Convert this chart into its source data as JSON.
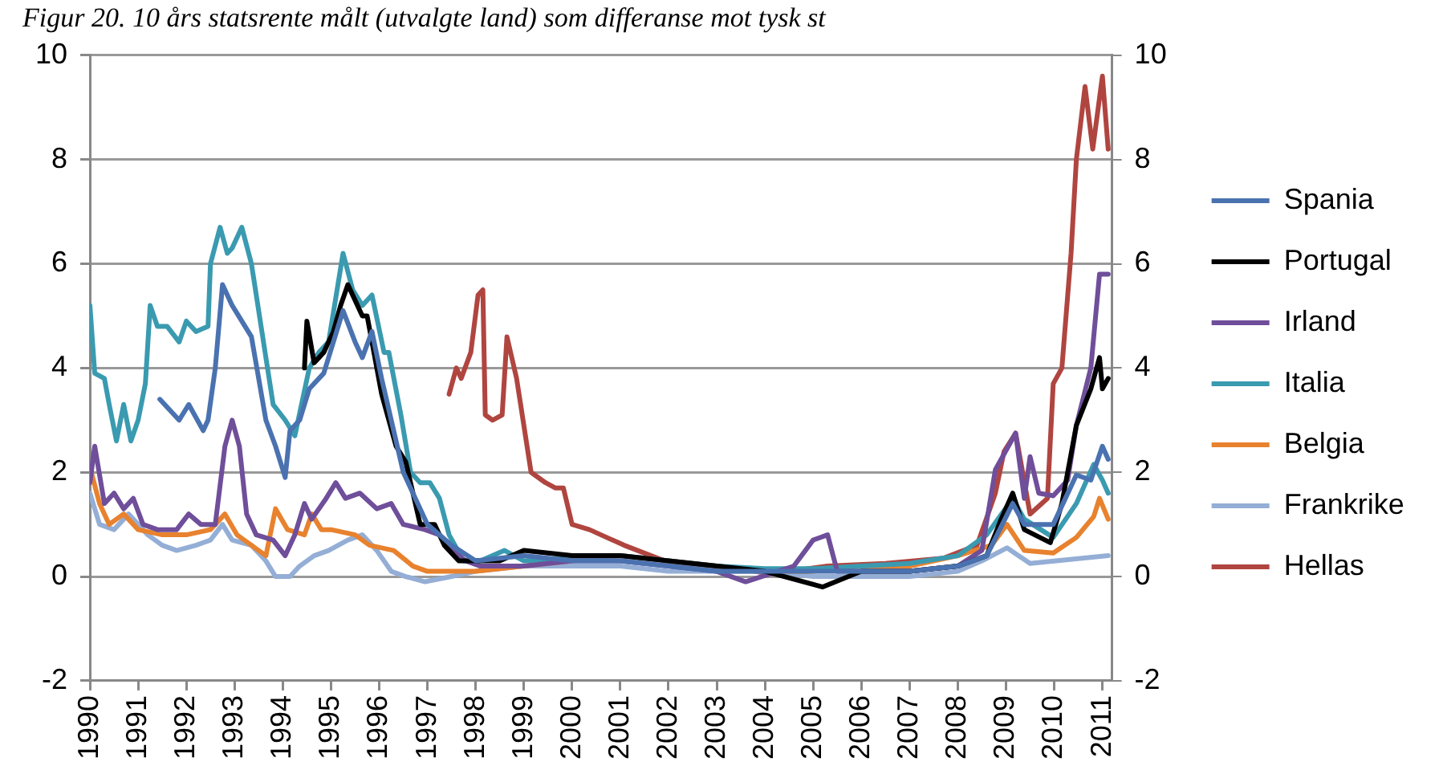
{
  "chart_data": {
    "type": "line",
    "title": "Figur 20. 10 års statsrente målt (utvalgte land) som differanse mot tysk st",
    "xlim": [
      1990,
      2011.2
    ],
    "xticks": [
      1990,
      1991,
      1992,
      1993,
      1994,
      1995,
      1996,
      1997,
      1998,
      1999,
      2000,
      2001,
      2002,
      2003,
      2004,
      2005,
      2006,
      2007,
      2008,
      2009,
      2010,
      2011
    ],
    "ylim": [
      -2,
      10
    ],
    "yticks": [
      -2,
      0,
      2,
      4,
      6,
      8,
      10
    ],
    "y2lim": [
      -2,
      10
    ],
    "y2ticks": [
      -2,
      0,
      2,
      4,
      6,
      8,
      10
    ],
    "grid": "y",
    "legend": "right",
    "marker": "none",
    "line_style": "solid",
    "series": [
      {
        "name": "Spania",
        "color": "#4a72b0",
        "x": [
          1991.45,
          1991.65,
          1991.85,
          1992.05,
          1992.35,
          1992.45,
          1992.6,
          1992.75,
          1992.95,
          1993.35,
          1993.65,
          1993.85,
          1994.05,
          1994.15,
          1994.35,
          1994.55,
          1994.85,
          1995.05,
          1995.25,
          1995.5,
          1995.65,
          1995.85,
          1996.05,
          1996.5,
          1997,
          1997.5,
          1998,
          1999,
          2000,
          2001,
          2002,
          2003,
          2004,
          2005,
          2006,
          2007,
          2008,
          2008.6,
          2009.14,
          2009.38,
          2009.98,
          2010.46,
          2010.76,
          2011,
          2011.12
        ],
        "values": [
          3.4,
          3.2,
          3.0,
          3.3,
          2.8,
          3.0,
          4.0,
          5.6,
          5.2,
          4.6,
          3.0,
          2.5,
          1.9,
          2.8,
          3.0,
          3.6,
          3.9,
          4.5,
          5.1,
          4.5,
          4.2,
          4.7,
          3.8,
          2.0,
          1.0,
          0.6,
          0.3,
          0.4,
          0.3,
          0.3,
          0.2,
          0.1,
          0.1,
          0.1,
          0.1,
          0.1,
          0.2,
          0.4,
          1.4,
          1.0,
          1.0,
          1.95,
          1.85,
          2.5,
          2.25
        ]
      },
      {
        "name": "Portugal",
        "color": "#000000",
        "x": [
          1994.45,
          1994.5,
          1994.65,
          1994.85,
          1995.05,
          1995.2,
          1995.35,
          1995.65,
          1995.75,
          1996.05,
          1996.35,
          1996.55,
          1996.85,
          1997.15,
          1997.35,
          1997.65,
          1998.5,
          1999,
          2000,
          2001,
          2002,
          2003,
          2004,
          2005.2,
          2006,
          2007,
          2008,
          2008.6,
          2008.9,
          2009.14,
          2009.38,
          2009.92,
          2010.16,
          2010.46,
          2010.76,
          2010.94,
          2011,
          2011.12
        ],
        "values": [
          4.0,
          4.9,
          4.1,
          4.3,
          4.7,
          5.2,
          5.6,
          5.0,
          5.0,
          3.5,
          2.5,
          2.2,
          1.0,
          1.0,
          0.6,
          0.3,
          0.3,
          0.5,
          0.4,
          0.4,
          0.3,
          0.2,
          0.1,
          -0.2,
          0.1,
          0.1,
          0.2,
          0.4,
          1.1,
          1.6,
          0.9,
          0.65,
          1.4,
          2.9,
          3.6,
          4.2,
          3.6,
          3.8
        ]
      },
      {
        "name": "Irland",
        "color": "#6f4e9a",
        "x": [
          1990,
          1990.1,
          1990.3,
          1990.5,
          1990.7,
          1990.9,
          1991.1,
          1991.4,
          1991.8,
          1992.05,
          1992.3,
          1992.6,
          1992.8,
          1992.95,
          1993.1,
          1993.25,
          1993.45,
          1993.8,
          1994.05,
          1994.25,
          1994.45,
          1994.6,
          1994.9,
          1995.1,
          1995.3,
          1995.6,
          1995.95,
          1996.25,
          1996.5,
          1996.95,
          1997.25,
          1997.5,
          1997.8,
          1998.1,
          1999,
          2000,
          2001,
          2002,
          2003,
          2003.6,
          2004.6,
          2005,
          2005.3,
          2005.5,
          2006,
          2007,
          2008,
          2008.5,
          2008.78,
          2009.2,
          2009.38,
          2009.5,
          2009.68,
          2009.98,
          2010.28,
          2010.46,
          2010.76,
          2010.94,
          2011.12
        ],
        "values": [
          1.8,
          2.5,
          1.4,
          1.6,
          1.3,
          1.5,
          1.0,
          0.9,
          0.9,
          1.2,
          1.0,
          1.0,
          2.5,
          3.0,
          2.5,
          1.2,
          0.8,
          0.7,
          0.4,
          0.8,
          1.4,
          1.1,
          1.5,
          1.8,
          1.5,
          1.6,
          1.3,
          1.4,
          1.0,
          0.9,
          0.8,
          0.5,
          0.3,
          0.2,
          0.2,
          0.3,
          0.3,
          0.2,
          0.1,
          -0.1,
          0.2,
          0.7,
          0.8,
          0.1,
          0.1,
          0.1,
          0.2,
          0.5,
          2.05,
          2.75,
          1.5,
          2.3,
          1.6,
          1.55,
          1.85,
          2.9,
          4.0,
          5.8,
          5.8
        ]
      },
      {
        "name": "Italia",
        "color": "#3a9ab0",
        "x": [
          1990,
          1990.1,
          1990.3,
          1990.4,
          1990.55,
          1990.7,
          1990.85,
          1991,
          1991.15,
          1991.25,
          1991.4,
          1991.6,
          1991.85,
          1992,
          1992.2,
          1992.45,
          1992.5,
          1992.7,
          1992.85,
          1992.95,
          1993.15,
          1993.35,
          1993.6,
          1993.8,
          1994.05,
          1994.25,
          1994.55,
          1994.75,
          1994.95,
          1995.25,
          1995.45,
          1995.65,
          1995.85,
          1996.1,
          1996.2,
          1996.45,
          1996.65,
          1996.85,
          1997.05,
          1997.25,
          1997.45,
          1997.75,
          1998.1,
          1998.6,
          1999,
          2000,
          2001,
          2002,
          2003,
          2004,
          2005,
          2006,
          2007,
          2008,
          2008.6,
          2009.14,
          2009.38,
          2009.98,
          2010.46,
          2010.82,
          2011,
          2011.12
        ],
        "values": [
          5.2,
          3.9,
          3.8,
          3.3,
          2.6,
          3.3,
          2.6,
          3.0,
          3.7,
          5.2,
          4.8,
          4.8,
          4.5,
          4.9,
          4.7,
          4.8,
          6.0,
          6.7,
          6.2,
          6.3,
          6.7,
          6.0,
          4.5,
          3.3,
          3.0,
          2.7,
          4.0,
          4.3,
          4.5,
          6.2,
          5.5,
          5.2,
          5.4,
          4.3,
          4.3,
          3.1,
          2.0,
          1.8,
          1.8,
          1.5,
          0.8,
          0.3,
          0.3,
          0.5,
          0.3,
          0.35,
          0.4,
          0.3,
          0.2,
          0.15,
          0.15,
          0.2,
          0.25,
          0.4,
          0.8,
          1.5,
          1.1,
          0.75,
          1.4,
          2.15,
          1.85,
          1.6
        ]
      },
      {
        "name": "Belgia",
        "color": "#e8822e",
        "x": [
          1990,
          1990.2,
          1990.4,
          1990.7,
          1991,
          1991.5,
          1992,
          1992.5,
          1992.8,
          1993.05,
          1993.35,
          1993.65,
          1993.85,
          1994.1,
          1994.45,
          1994.6,
          1994.8,
          1995,
          1995.5,
          1995.8,
          1996.3,
          1996.7,
          1997,
          1998,
          1999,
          2000,
          2001,
          2002,
          2003,
          2004,
          2005,
          2006,
          2007,
          2008,
          2008.7,
          2009.02,
          2009.38,
          2009.98,
          2010.46,
          2010.82,
          2010.94,
          2011.12
        ],
        "values": [
          2.1,
          1.4,
          1.0,
          1.2,
          0.9,
          0.8,
          0.8,
          0.9,
          1.2,
          0.8,
          0.6,
          0.4,
          1.3,
          0.9,
          0.8,
          1.2,
          0.9,
          0.9,
          0.8,
          0.6,
          0.5,
          0.2,
          0.1,
          0.1,
          0.2,
          0.3,
          0.4,
          0.3,
          0.2,
          0.1,
          0.1,
          0.2,
          0.2,
          0.4,
          0.6,
          1.0,
          0.5,
          0.45,
          0.75,
          1.15,
          1.5,
          1.1
        ]
      },
      {
        "name": "Frankrike",
        "color": "#94aed6",
        "x": [
          1990,
          1990.2,
          1990.5,
          1990.8,
          1991.2,
          1991.5,
          1991.8,
          1992.2,
          1992.5,
          1992.75,
          1992.95,
          1993.35,
          1993.65,
          1993.85,
          1994.15,
          1994.35,
          1994.65,
          1994.95,
          1995.35,
          1995.65,
          1995.95,
          1996.25,
          1996.55,
          1996.95,
          1997.5,
          1998,
          1999,
          2000,
          2001,
          2002,
          2003,
          2004,
          2005,
          2006,
          2007,
          2008,
          2008.5,
          2009.02,
          2009.5,
          2010.58,
          2011.12
        ],
        "values": [
          1.6,
          1.0,
          0.9,
          1.2,
          0.8,
          0.6,
          0.5,
          0.6,
          0.7,
          1.0,
          0.7,
          0.6,
          0.3,
          0.0,
          0.0,
          0.2,
          0.4,
          0.5,
          0.7,
          0.8,
          0.5,
          0.1,
          0.0,
          -0.1,
          0.0,
          0.1,
          0.2,
          0.2,
          0.2,
          0.1,
          0.1,
          0.1,
          0.0,
          0.0,
          0.0,
          0.1,
          0.3,
          0.55,
          0.25,
          0.35,
          0.4
        ]
      },
      {
        "name": "Hellas",
        "color": "#b04540",
        "x": [
          1997.45,
          1997.6,
          1997.7,
          1997.9,
          1998.05,
          1998.15,
          1998.2,
          1998.35,
          1998.55,
          1998.65,
          1998.85,
          1999.15,
          1999.45,
          1999.65,
          1999.82,
          2000,
          2000.36,
          2001.08,
          2001.92,
          2003.5,
          2004.1,
          2005.3,
          2006.5,
          2007.7,
          2008.4,
          2008.78,
          2008.96,
          2009.2,
          2009.5,
          2009.86,
          2009.98,
          2010.16,
          2010.35,
          2010.46,
          2010.64,
          2010.8,
          2011,
          2011.12
        ],
        "values": [
          3.5,
          4.0,
          3.8,
          4.3,
          5.4,
          5.5,
          3.1,
          3.0,
          3.1,
          4.6,
          3.8,
          2.0,
          1.8,
          1.7,
          1.7,
          1.0,
          0.9,
          0.6,
          0.3,
          0.15,
          0.05,
          0.2,
          0.25,
          0.35,
          0.6,
          1.6,
          2.4,
          2.75,
          1.2,
          1.5,
          3.7,
          4.0,
          6.2,
          8.0,
          9.4,
          8.2,
          9.6,
          8.2
        ]
      }
    ]
  }
}
